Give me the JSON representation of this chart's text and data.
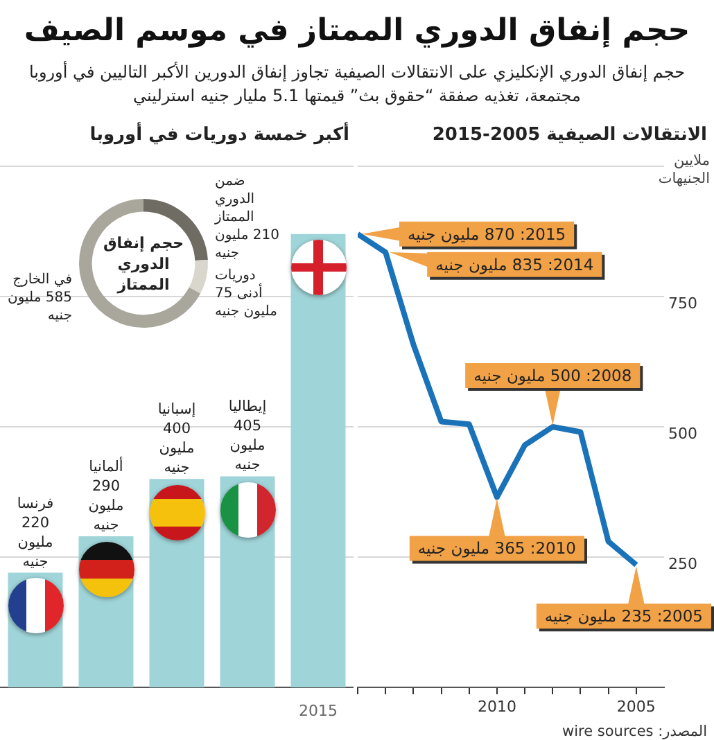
{
  "chart_data": [
    {
      "type": "bar",
      "title": "حجم إنفاق الدوري الممتاز في موسم الصيف",
      "subtitle": "حجم إنفاق الدوري الإنكليزي على الانتقالات الصيفية تجاوز إنفاق الدورين الأكبر التاليين في أوروبا مجتمعة، تغذيه صفقة “حقوق بث” قيمتها 5.1 مليار جنيه استرليني",
      "annotations": [
        "أكبر خمسة دوريات في أوروبا"
      ],
      "categories": [
        null,
        null,
        null,
        null,
        "2015"
      ],
      "values": [
        220,
        290,
        400,
        405,
        870
      ],
      "color": "#9fd4d8",
      "value_labels": [
        "فرنسا 220 مليون جنيه",
        "ألمانيا 290 مليون جنيه",
        "إسبانيا 400 مليون جنيه",
        "إيطاليا 405 مليون جنيه",
        null
      ],
      "ylim": [
        0,
        1000
      ],
      "yticks": [
        250,
        500,
        750,
        {
          "value": 1000,
          "label": null
        }
      ],
      "grid": "y",
      "tick_labels": "x"
    },
    {
      "type": "donut",
      "title": "حجم إنفاق الدوري الممتاز",
      "categories": [
        "ضمن الدوري الممتاز",
        "دوريات أدنى",
        "في الخارج"
      ],
      "values": [
        210,
        75,
        585
      ],
      "colors": [
        "#6e6c63",
        "#d9d7cd",
        "#a9a79b"
      ],
      "value_labels": [
        "210 مليون جنيه",
        "75 مليون جنيه",
        "585 مليون جنيه"
      ]
    },
    {
      "type": "line",
      "title": "الانتقالات الصيفية 2005-2015",
      "ylabel": "ملايين الجنيهات",
      "x": [
        2015,
        2014,
        2013,
        2012,
        2011,
        2010,
        2009,
        2008,
        2007,
        2006,
        2005
      ],
      "series": [
        {
          "color": "#1a72b9",
          "values": [
            870,
            835,
            658,
            510,
            505,
            365,
            465,
            500,
            490,
            280,
            235
          ]
        }
      ],
      "xlim": [
        2015,
        2004
      ],
      "xticks": [
        {
          "value": 2015,
          "label": null
        },
        {
          "value": 2014,
          "label": null
        },
        {
          "value": 2013,
          "label": null
        },
        {
          "value": 2012,
          "label": null
        },
        {
          "value": 2011,
          "label": null
        },
        2010,
        {
          "value": 2009,
          "label": null
        },
        {
          "value": 2008,
          "label": null
        },
        {
          "value": 2007,
          "label": null
        },
        {
          "value": 2006,
          "label": null
        },
        2005
      ],
      "ylim": [
        0,
        1000
      ],
      "yticks": [
        250,
        500,
        750,
        {
          "value": 1000,
          "label": null
        }
      ],
      "grid": "y",
      "marker": "none",
      "line_style": "solid",
      "annotations": [
        {
          "text": "2015: 870 مليون جنيه",
          "x": 2015,
          "y": 870
        },
        {
          "text": "2014: 835 مليون جنيه",
          "x": 2014,
          "y": 835
        },
        {
          "text": "2008: 500 مليون جنيه",
          "x": 2008,
          "y": 500
        },
        {
          "text": "2010: 365 مليون جنيه",
          "x": 2010,
          "y": 365
        },
        {
          "text": "2005: 235 مليون جنيه",
          "x": 2005,
          "y": 235
        },
        "المصدر: wire sources"
      ]
    }
  ]
}
